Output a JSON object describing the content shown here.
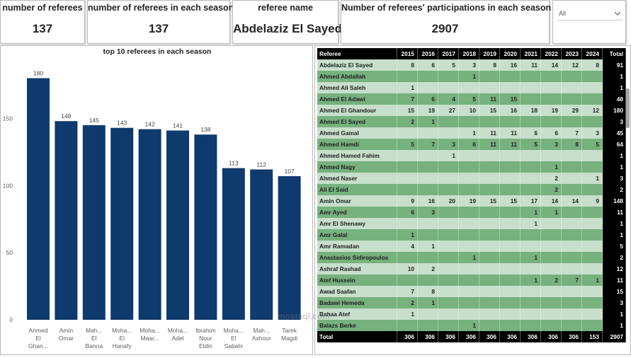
{
  "cards": [
    {
      "title": "number of referees",
      "value": "137"
    },
    {
      "title": "number of referees in each season",
      "value": "137"
    },
    {
      "title": "referee name",
      "value": "Abdelaziz El Sayed"
    },
    {
      "title": "Number of referees' participations in each season",
      "value": "2907"
    }
  ],
  "slicer": {
    "value": "All",
    "chevron_icon": "chevron-down-icon"
  },
  "colors": {
    "bar": "#0f3a6e",
    "header": "#000000",
    "row_light": "#c7dfcb",
    "row_dark": "#76b17e"
  },
  "chart_data": {
    "type": "bar",
    "title": "top 10 referees in each season",
    "categories": [
      [
        "Ahmed",
        "El",
        "Ghan..."
      ],
      [
        "Amin",
        "Omar"
      ],
      [
        "Mah...",
        "El",
        "Banna"
      ],
      [
        "Moha...",
        "El",
        "Hanafy"
      ],
      [
        "Moha...",
        "Maar..."
      ],
      [
        "Moha...",
        "Adel"
      ],
      [
        "Ibrahim",
        "Nour",
        "Eldin"
      ],
      [
        "Moha...",
        "El",
        "Sabahi"
      ],
      [
        "Mah...",
        "Ashour"
      ],
      [
        "Tarek",
        "Magdi"
      ]
    ],
    "values": [
      180,
      148,
      145,
      143,
      142,
      141,
      138,
      113,
      112,
      107
    ],
    "ylim": [
      0,
      185
    ],
    "yticks": [
      0,
      50,
      100,
      150
    ],
    "grid": false
  },
  "table": {
    "headers": [
      "Referee",
      "2015",
      "2016",
      "2017",
      "2018",
      "2019",
      "2020",
      "2021",
      "2022",
      "2023",
      "2024",
      "Total"
    ],
    "rows": [
      [
        "Abdelaziz El Sayed",
        "8",
        "6",
        "5",
        "3",
        "8",
        "16",
        "11",
        "14",
        "12",
        "8",
        "91"
      ],
      [
        "Ahmed Abdallah",
        "",
        "",
        "",
        "1",
        "",
        "",
        "",
        "",
        "",
        "",
        "1"
      ],
      [
        "Ahmed Ali Saleh",
        "1",
        "",
        "",
        "",
        "",
        "",
        "",
        "",
        "",
        "",
        "1"
      ],
      [
        "Ahmed El Adawi",
        "7",
        "6",
        "4",
        "5",
        "11",
        "15",
        "",
        "",
        "",
        "",
        "48"
      ],
      [
        "Ahmed El Ghandour",
        "15",
        "19",
        "27",
        "10",
        "15",
        "16",
        "18",
        "19",
        "29",
        "12",
        "180"
      ],
      [
        "Ahmed El Sayed",
        "2",
        "1",
        "",
        "",
        "",
        "",
        "",
        "",
        "",
        "",
        "3"
      ],
      [
        "Ahmed Gamal",
        "",
        "",
        "",
        "1",
        "11",
        "11",
        "6",
        "6",
        "7",
        "3",
        "45"
      ],
      [
        "Ahmed Hamdi",
        "5",
        "7",
        "3",
        "6",
        "11",
        "11",
        "5",
        "3",
        "8",
        "5",
        "64"
      ],
      [
        "Ahmed Hamed Fahim",
        "",
        "",
        "1",
        "",
        "",
        "",
        "",
        "",
        "",
        "",
        "1"
      ],
      [
        "Ahmed Nagy",
        "",
        "",
        "",
        "",
        "",
        "",
        "",
        "1",
        "",
        "",
        "1"
      ],
      [
        "Ahmed Naser",
        "",
        "",
        "",
        "",
        "",
        "",
        "",
        "2",
        "",
        "1",
        "3"
      ],
      [
        "Ali El Said",
        "",
        "",
        "",
        "",
        "",
        "",
        "",
        "2",
        "",
        "",
        "2"
      ],
      [
        "Amin Omar",
        "9",
        "16",
        "20",
        "19",
        "15",
        "15",
        "17",
        "14",
        "14",
        "9",
        "148"
      ],
      [
        "Amr Ayed",
        "6",
        "3",
        "",
        "",
        "",
        "",
        "1",
        "1",
        "",
        "",
        "11"
      ],
      [
        "Amr El Shenawy",
        "",
        "",
        "",
        "",
        "",
        "",
        "1",
        "",
        "",
        "",
        "1"
      ],
      [
        "Amr Galal",
        "1",
        "",
        "",
        "",
        "",
        "",
        "",
        "",
        "",
        "",
        "1"
      ],
      [
        "Amr Ramadan",
        "4",
        "1",
        "",
        "",
        "",
        "",
        "",
        "",
        "",
        "",
        "5"
      ],
      [
        "Anastasios Sidiropoulos",
        "",
        "",
        "",
        "1",
        "",
        "",
        "1",
        "",
        "",
        "",
        "2"
      ],
      [
        "Ashraf Rashad",
        "10",
        "2",
        "",
        "",
        "",
        "",
        "",
        "",
        "",
        "",
        "12"
      ],
      [
        "Atef Hussein",
        "",
        "",
        "",
        "",
        "",
        "",
        "1",
        "2",
        "7",
        "1",
        "11"
      ],
      [
        "Awad Saafan",
        "7",
        "8",
        "",
        "",
        "",
        "",
        "",
        "",
        "",
        "",
        "15"
      ],
      [
        "Badawi Hemeda",
        "2",
        "1",
        "",
        "",
        "",
        "",
        "",
        "",
        "",
        "",
        "3"
      ],
      [
        "Bahaa Atef",
        "1",
        "",
        "",
        "",
        "",
        "",
        "",
        "",
        "",
        "",
        "1"
      ],
      [
        "Balazs Berke",
        "",
        "",
        "",
        "1",
        "",
        "",
        "",
        "",
        "",
        "",
        "1"
      ]
    ],
    "total": [
      "Total",
      "306",
      "306",
      "306",
      "306",
      "306",
      "306",
      "306",
      "306",
      "306",
      "153",
      "2907"
    ]
  },
  "watermark": "mostaql.com"
}
